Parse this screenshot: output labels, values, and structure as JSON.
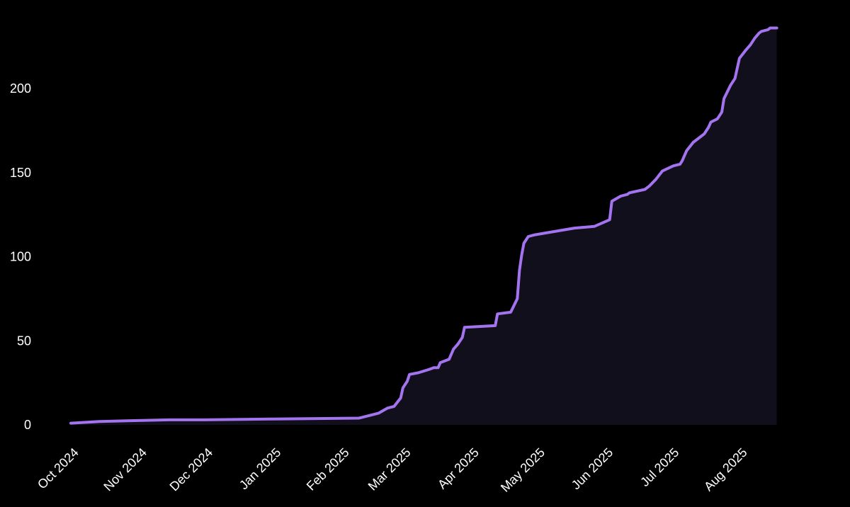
{
  "chart_data": {
    "type": "area",
    "title": "",
    "xlabel": "",
    "ylabel": "",
    "x_axis_type": "date",
    "xlim": [
      "2024-10-01",
      "2025-08-31"
    ],
    "ylim": [
      0,
      240
    ],
    "grid": false,
    "legend": "none",
    "colors": {
      "background": "#000000",
      "line": "#a474f0",
      "fill": "#120f1c"
    },
    "x_ticks": [
      {
        "date": "2024-10-01",
        "label": "Oct 2024"
      },
      {
        "date": "2024-11-01",
        "label": "Nov 2024"
      },
      {
        "date": "2024-12-01",
        "label": "Dec 2024"
      },
      {
        "date": "2025-01-01",
        "label": "Jan 2025"
      },
      {
        "date": "2025-02-01",
        "label": "Feb 2025"
      },
      {
        "date": "2025-03-01",
        "label": "Mar 2025"
      },
      {
        "date": "2025-04-01",
        "label": "Apr 2025"
      },
      {
        "date": "2025-05-01",
        "label": "May 2025"
      },
      {
        "date": "2025-06-01",
        "label": "Jun 2025"
      },
      {
        "date": "2025-07-01",
        "label": "Jul 2025"
      },
      {
        "date": "2025-08-01",
        "label": "Aug 2025"
      }
    ],
    "y_ticks": [
      {
        "value": 0,
        "label": "0"
      },
      {
        "value": 50,
        "label": "50"
      },
      {
        "value": 100,
        "label": "100"
      },
      {
        "value": 150,
        "label": "150"
      },
      {
        "value": 200,
        "label": "200"
      }
    ],
    "series": [
      {
        "x": [
          "2024-10-01",
          "2024-10-14",
          "2024-10-28",
          "2024-11-15",
          "2024-12-01",
          "2025-01-01",
          "2025-02-09",
          "2025-02-18",
          "2025-02-22",
          "2025-02-25",
          "2025-02-28",
          "2025-03-01",
          "2025-03-03",
          "2025-03-04",
          "2025-03-08",
          "2025-03-13",
          "2025-03-15",
          "2025-03-17",
          "2025-03-18",
          "2025-03-22",
          "2025-03-24",
          "2025-03-26",
          "2025-03-28",
          "2025-03-29",
          "2025-04-12",
          "2025-04-13",
          "2025-04-19",
          "2025-04-22",
          "2025-04-23",
          "2025-04-24",
          "2025-04-25",
          "2025-04-27",
          "2025-04-30",
          "2025-05-18",
          "2025-05-27",
          "2025-06-03",
          "2025-06-04",
          "2025-06-08",
          "2025-06-11",
          "2025-06-12",
          "2025-06-19",
          "2025-06-21",
          "2025-06-24",
          "2025-06-27",
          "2025-07-02",
          "2025-07-05",
          "2025-07-06",
          "2025-07-08",
          "2025-07-11",
          "2025-07-15",
          "2025-07-16",
          "2025-07-18",
          "2025-07-19",
          "2025-07-22",
          "2025-07-24",
          "2025-07-25",
          "2025-07-28",
          "2025-07-30",
          "2025-08-01",
          "2025-08-04",
          "2025-08-06",
          "2025-08-08",
          "2025-08-10",
          "2025-08-11",
          "2025-08-14",
          "2025-08-15",
          "2025-08-16",
          "2025-08-17",
          "2025-08-18"
        ],
        "values": [
          1,
          2,
          2.5,
          3,
          3,
          3.5,
          4,
          7,
          10,
          11,
          16,
          22,
          26,
          30,
          31,
          33,
          34,
          34,
          37,
          39,
          45,
          48,
          52,
          58,
          59,
          66,
          67,
          75,
          92,
          101,
          108,
          112,
          113,
          117,
          118,
          122,
          133,
          136,
          137,
          138,
          140,
          142,
          146,
          151,
          154,
          155,
          157,
          163,
          168,
          172,
          173,
          177,
          180,
          182,
          186,
          194,
          202,
          206,
          218,
          223,
          226,
          230,
          233,
          234,
          235,
          236,
          236,
          236,
          236
        ]
      }
    ]
  }
}
